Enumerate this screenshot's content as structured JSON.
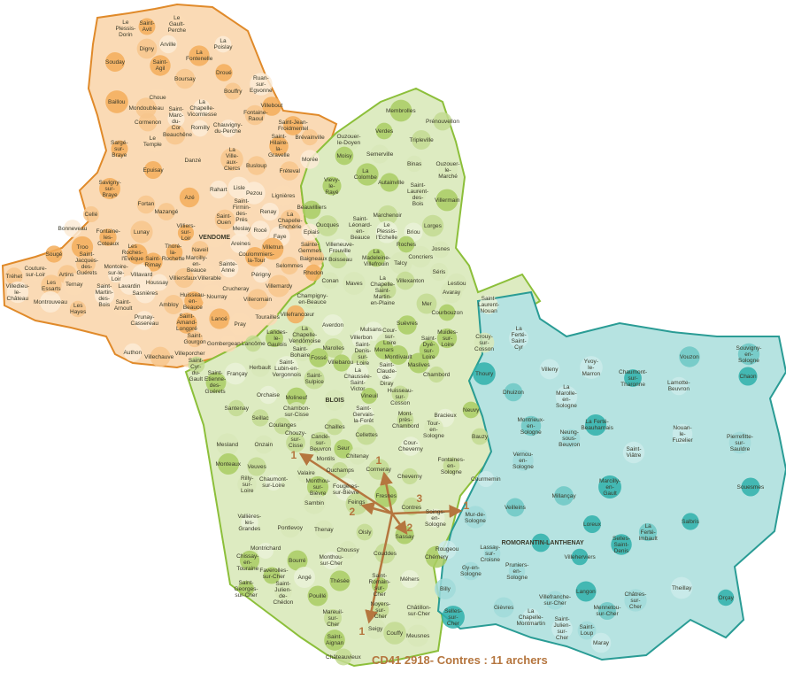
{
  "title": "CD41 2918- Contres : 11 archers",
  "colors": {
    "vendomois": "#f3ad5a",
    "blesois": "#a9cc63",
    "sologne": "#2fb0aa",
    "arrow": "#b5763f"
  },
  "origin": "Contres",
  "arrows": [
    {
      "to": "Chouzy-sur-Cisse",
      "count": "1"
    },
    {
      "to": "Cormeray",
      "count": "1"
    },
    {
      "to": "Feings",
      "count": "2"
    },
    {
      "to": "Contres",
      "count": "3"
    },
    {
      "to": "Mur-de-Sologne",
      "count": "1"
    },
    {
      "to": "Sassay",
      "count": "2"
    },
    {
      "to": "Seigy",
      "count": "1"
    }
  ],
  "communes": {
    "orange": [
      "Le Plessis-Dorin",
      "Saint-Avit",
      "Le Gault-Perche",
      "La Poislay",
      "Digny",
      "Arville",
      "La Fontenelle",
      "Souday",
      "Saint-Agil",
      "Boursay",
      "Droué",
      "Ruan-sur-Egvonne",
      "Bouffry",
      "Baillou",
      "Choue",
      "Mondoubleau",
      "La Chapelle-Vicomtesse",
      "Villebout",
      "Fontaine-Raoul",
      "Saint-Marc-du-Cor",
      "Cormenon",
      "Romilly",
      "Chauvigny-du-Perche",
      "Saint-Jean-Froidmentel",
      "Beauchêne",
      "Le Temple",
      "Sargé-sur-Braye",
      "Saint-Hilaire-la-Gravelle",
      "Brévainville",
      "Danzé",
      "La Ville-aux-Clercs",
      "Busloup",
      "Morée",
      "Fréteval",
      "Epuisay",
      "Savigny-sur-Braye",
      "Rahart",
      "Lisle",
      "Pezou",
      "Lignières",
      "Azé",
      "Fortan",
      "Mazangé",
      "Saint-Firmin-des-Prés",
      "Renay",
      "Cellé",
      "Saint-Ouen",
      "Meslay",
      "Rocé",
      "La Chapelle-Enchérie",
      "Epiais",
      "Lunay",
      "Villiers-sur-Loir",
      "VENDOME",
      "Faye",
      "Bonneveau",
      "Fontaine-les-Coteaux",
      "Thoré-la-Rochette",
      "Areines",
      "Villetrun",
      "Coulommiers-la-Tour",
      "Sainte-Gemmes",
      "Baigneaux",
      "Naveil",
      "Troo",
      "Sougé",
      "Les Roches-l'Evêque",
      "Saint-Rimay",
      "Saint-Jacques-des-Guérets",
      "Montoire-sur-le-Loir",
      "Marcilly-en-Beauce",
      "Sainte-Anne",
      "Villerable",
      "Selommes",
      "Périgny",
      "Rhodon",
      "Tréhet",
      "Couture-sur-Loir",
      "Artins",
      "Villavard",
      "Villiersfaux",
      "Houssay",
      "Les Essarts",
      "Ternay",
      "Lavardin",
      "Villemardy",
      "Crucheray",
      "Villedieu-le-Château",
      "Saint-Martin-des-Bois",
      "Sasnières",
      "Huisseau-en-Beauce",
      "Nourray",
      "Villeromain",
      "Montrouveau",
      "Ambloy",
      "Saint-Arnoult",
      "Les Hayes",
      "Prunay-Cassereau",
      "Lancé",
      "Saint-Amand-Longpré",
      "Tourailles",
      "Villefrancœur",
      "Pray",
      "Saint-Gourgon",
      "Gombergean",
      "Villeporcher",
      "Authon",
      "Villechauve"
    ],
    "green": [
      "Membrolles",
      "Prénouvellon",
      "Ouzouer-le-Doyen",
      "Verdes",
      "Tripleville",
      "Semerville",
      "Moisy",
      "Binas",
      "Ouzouer-le-Marché",
      "La Colombe",
      "Autainville",
      "Vievy-le-Rayé",
      "Saint-Laurent-des-Bois",
      "Villermain",
      "Marchenoir",
      "Beauvilliers",
      "Oucques",
      "Saint-Léonard-en-Beauce",
      "Le Plessis-l'Echelle",
      "Briou",
      "Lorges",
      "Roches",
      "Josnes",
      "Villeneuve-Frouville",
      "Boisseau",
      "La Madeleine-Villefrouin",
      "Talcy",
      "Concriers",
      "Séris",
      "Conan",
      "Maves",
      "Villexanton",
      "Lestiou",
      "La Chapelle-Saint-Martin-en-Plaine",
      "Avaray",
      "Champigny-en-Beauce",
      "Mer",
      "Courbouzon",
      "Saint-Laurent-Nouan",
      "Averdon",
      "Mulsans",
      "Suèvres",
      "La Chapelle-Vendômoise",
      "Landes-le-Gaulois",
      "Lancôme",
      "Villerbon",
      "Cour-sur-Loire",
      "Muides-sur-Loire",
      "Menars",
      "Marolles",
      "Saint-Bohaire",
      "Saint-Dyé-sur-Loire",
      "Crouy-sur-Cosson",
      "Montlivault",
      "Saint-Denis-sur-Loire",
      "Fossé",
      "Maslives",
      "Saint-Cyr-du-Gault",
      "Herbault",
      "Saint-Lubin-en-Vergonnois",
      "Villebarou",
      "Françay",
      "La Chaussée-Saint-Victor",
      "Saint-Claude-de-Diray",
      "Chambord",
      "Saint-Etienne-des-Guérets",
      "Saint-Sulpice",
      "Orchaise",
      "Molineuf",
      "BLOIS",
      "Vineuil",
      "Huisseau-sur-Cosson",
      "Santenay",
      "Chambon-sur-Cisse",
      "Saint-Gervais-la-Forêt",
      "Mont-près-Chambord",
      "Neuvy",
      "Seillac",
      "Coulanges",
      "Chailles",
      "Bracieux",
      "Tour-en-Sologne",
      "Mesland",
      "Onzain",
      "Chouzy-sur-Cisse",
      "Candé-sur-Beuvron",
      "Cellettes",
      "Cour-Cheverny",
      "Bauzy",
      "Seur",
      "Montils",
      "Chitenay",
      "Fontaines-en-Sologne",
      "Monteaux",
      "Veuves",
      "Ouchamps",
      "Cormeray",
      "Cheverny",
      "Rilly-sur-Loire",
      "Chaumont-sur-Loire",
      "Valaire",
      "Monthou-sur-Bièvre",
      "Fougères-sur-Bièvre",
      "Fresnes",
      "Contres",
      "Sambin",
      "Feings",
      "Soings-en-Sologne",
      "Vallières-les-Grandes",
      "Pontlevoy",
      "Thenay",
      "Oisly",
      "Sassay",
      "Chissay-en-Touraine",
      "Montrichard",
      "Bourré",
      "Monthou-sur-Cher",
      "Choussy",
      "Couddes",
      "Chémery",
      "Faverolles-sur-Cher",
      "Angé",
      "Thésée",
      "Saint-Romain-sur-Cher",
      "Méhers",
      "Saint-Georges-sur-Cher",
      "Saint-Julien-de-Chédon",
      "Pouillé",
      "Mareuil-sur-Cher",
      "Noyers-sur-Cher",
      "Châtillon-sur-Cher",
      "Seigy",
      "Couffy",
      "Meusnes",
      "Saint-Aignan",
      "Châteauvieux"
    ],
    "teal": [
      "La Ferté-Saint-Cyr",
      "Villeny",
      "Yvoy-le-Marron",
      "Chaumont-sur-Tharonne",
      "Vouzon",
      "Souvigny-en-Sologne",
      "Chaon",
      "Lamotte-Beuvron",
      "Thoury",
      "Dhuizon",
      "La Marolle-en-Sologne",
      "La Ferté-Beauharnais",
      "Neung-sous-Beuvron",
      "Nouan-le-Fuzelier",
      "Montrieux-en-Sologne",
      "Saint-Viâtre",
      "Pierrefitte-sur-Sauldre",
      "Vernou-en-Sologne",
      "Courmemin",
      "Marcilly-en-Gault",
      "Millançay",
      "Souesmes",
      "Veilleins",
      "Loreux",
      "Salbris",
      "La Ferté-Imbault",
      "ROMORANTIN-LANTHENAY",
      "Selles-Saint-Denis",
      "Villeherviers",
      "Lassay-sur-Croisne",
      "Gy-en-Sologne",
      "Pruniers-en-Sologne",
      "Theillay",
      "Villefranche-sur-Cher",
      "Langon",
      "Châtres-sur-Cher",
      "Mennetou-sur-Cher",
      "Orçay",
      "Gièvres",
      "La Chapelle-Montmartin",
      "Saint-Julien-sur-Cher",
      "Saint-Loup",
      "Maray",
      "Mur-de-Sologne",
      "Rougeou",
      "Billy",
      "Selles-sur-Cher"
    ]
  }
}
